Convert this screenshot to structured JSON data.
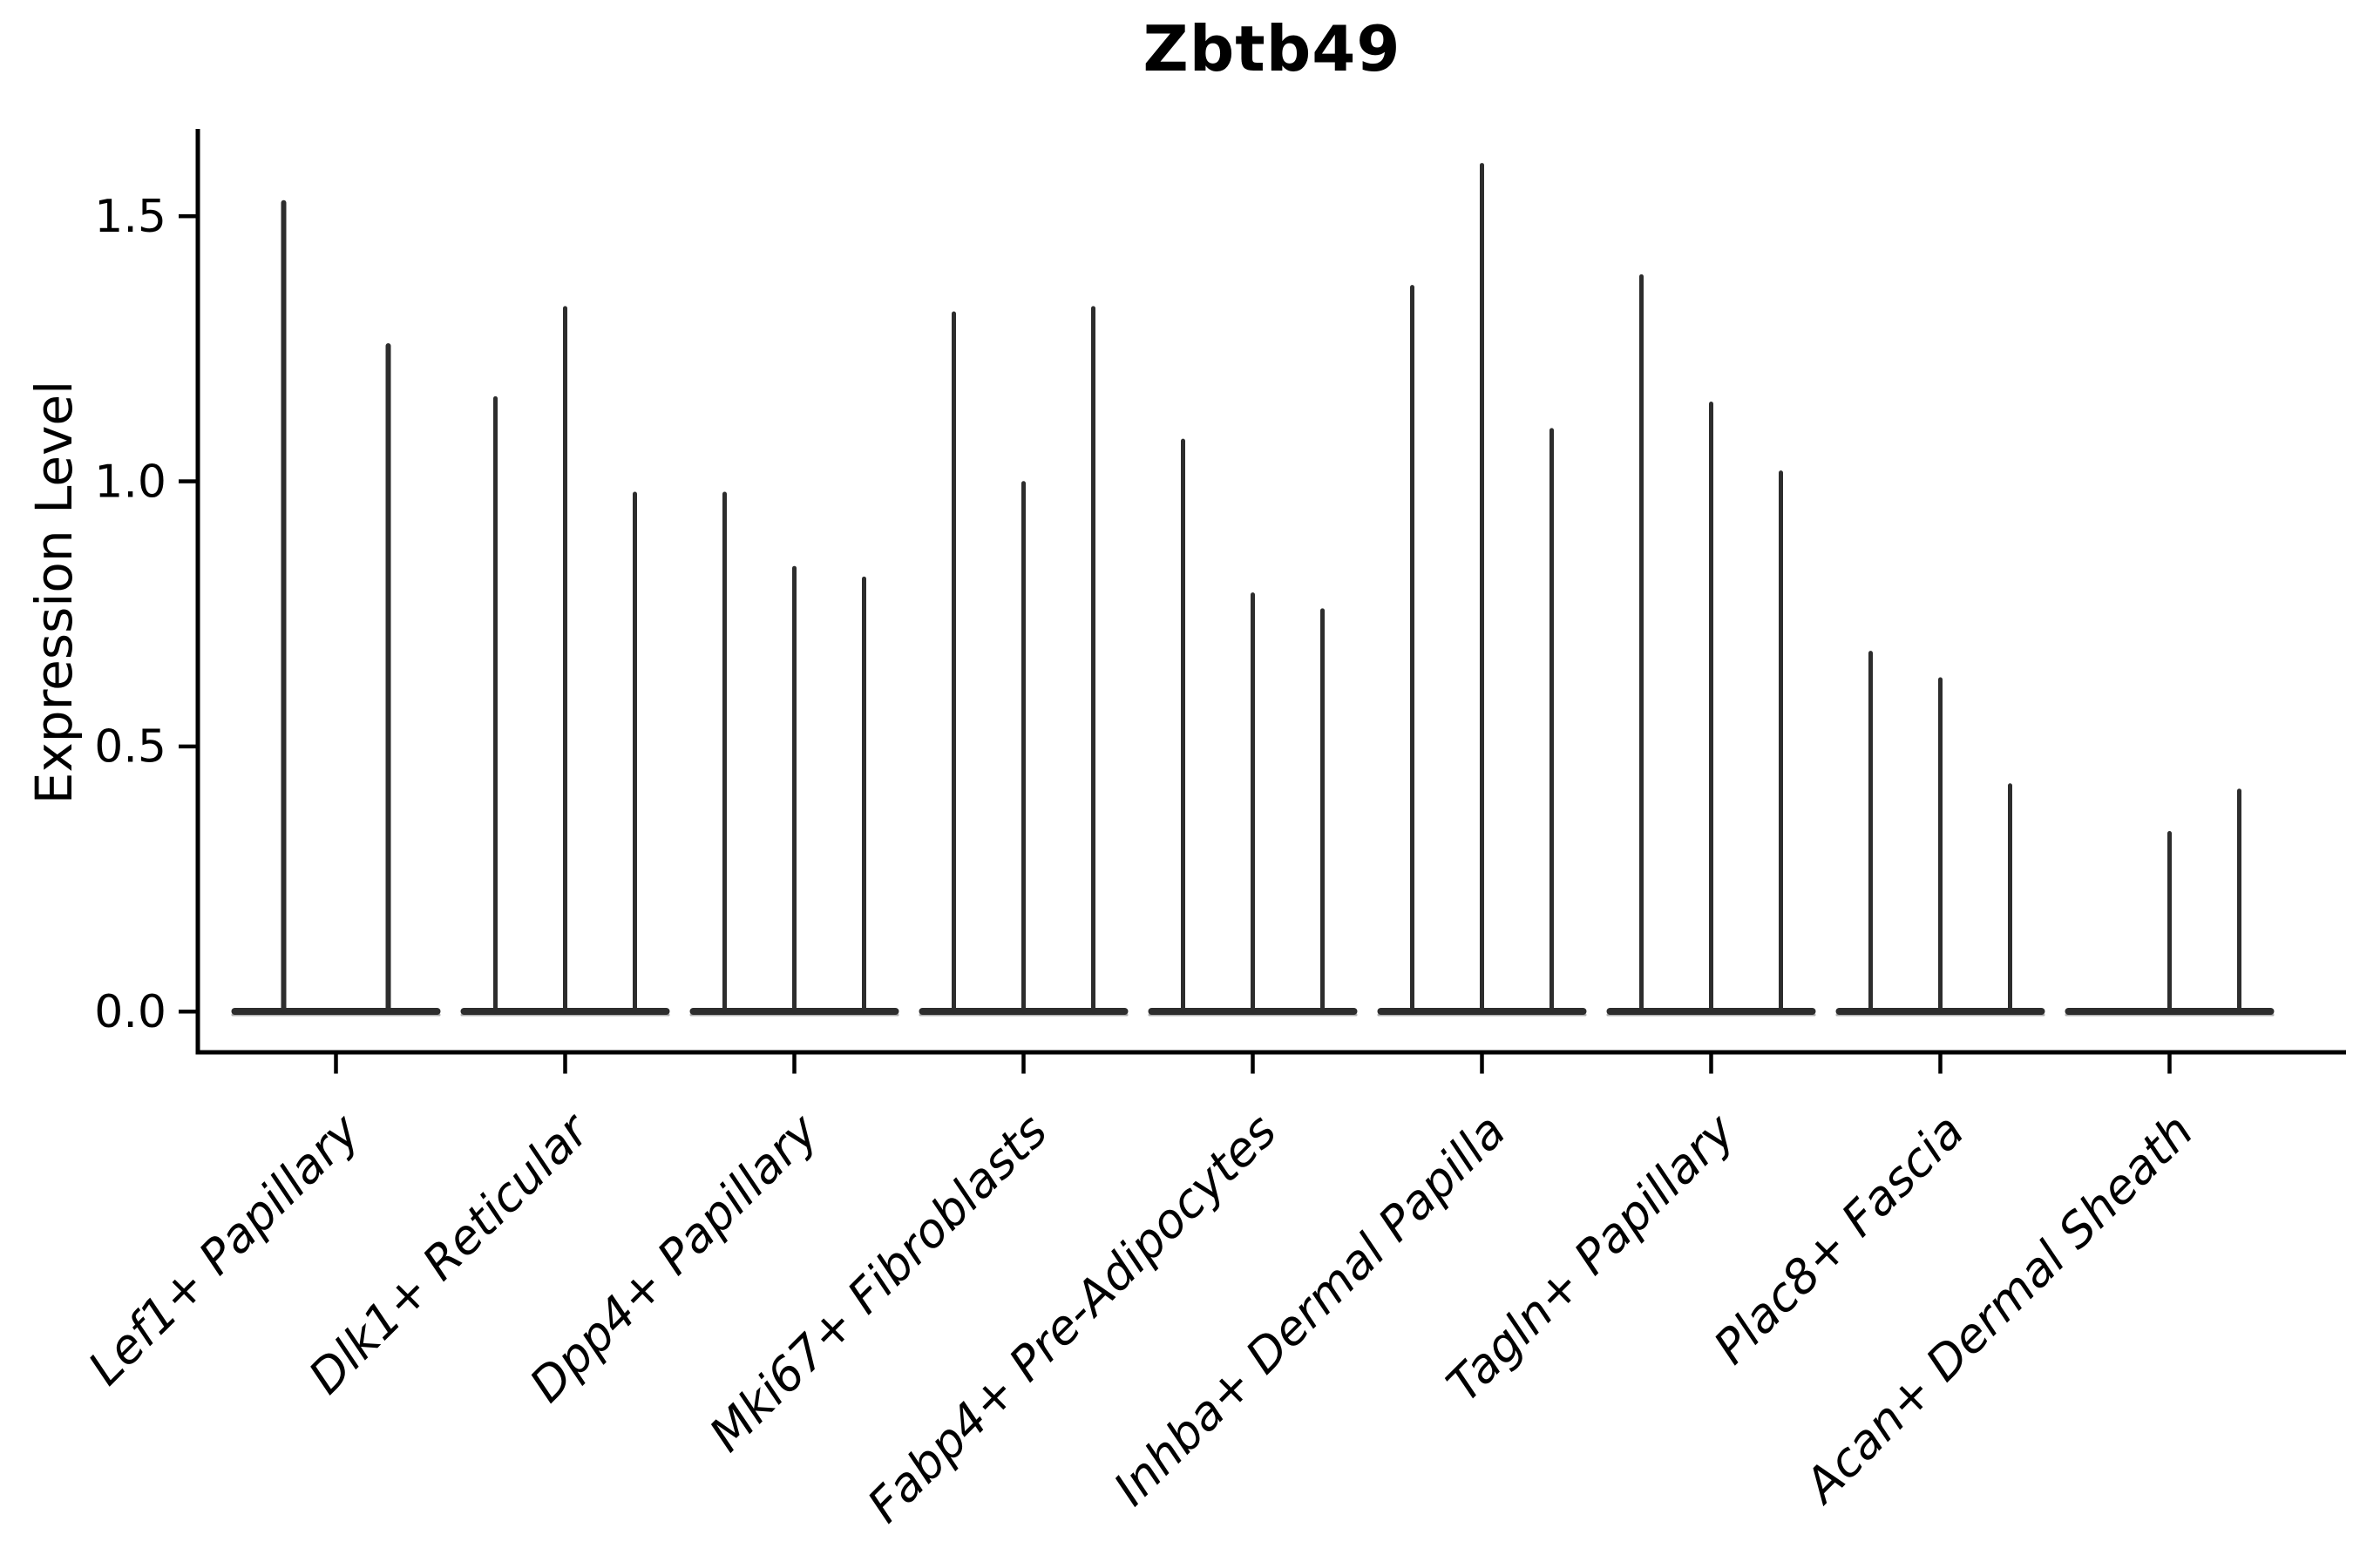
{
  "header": {
    "title": "Zbtb49"
  },
  "axes": {
    "ylabel": "Expression Level",
    "ytick_labels": [
      "0.0",
      "0.5",
      "1.0",
      "1.5"
    ]
  },
  "chart_data": {
    "type": "violin",
    "title": "Zbtb49",
    "xlabel": "",
    "ylabel": "Expression Level",
    "ylim": [
      -0.08,
      1.66
    ],
    "yticks": [
      0.0,
      0.5,
      1.0,
      1.5
    ],
    "grid": false,
    "legend": "none",
    "violin_style": "expression mass concentrated at 0 (wide flat base at y=0) with a narrow spike rising to the maximum expression value; all violins same dark color",
    "colors": {
      "violin_fill": "#2d2d2d",
      "base_fringe": "#b0b0b0",
      "axis": "#000000",
      "text": "#000000"
    },
    "categories": [
      "Lef1+ Papillary",
      "Dlk1+ Reticular",
      "Dpp4+ Papillary",
      "Mki67+ Fibroblasts",
      "Fabp4+ Pre-Adipocytes",
      "Inhba+ Dermal Papilla",
      "Tagln+ Papillary",
      "Plac8+ Fascia",
      "Acan+ Dermal Sheath"
    ],
    "groups": [
      {
        "category": "Lef1+ Papillary",
        "spike_maxima": [
          1.53,
          1.26
        ]
      },
      {
        "category": "Dlk1+ Reticular",
        "spike_maxima": [
          1.16,
          1.33,
          0.98
        ]
      },
      {
        "category": "Dpp4+ Papillary",
        "spike_maxima": [
          0.98,
          0.84,
          0.82
        ]
      },
      {
        "category": "Mki67+ Fibroblasts",
        "spike_maxima": [
          1.32,
          1.0,
          1.33
        ]
      },
      {
        "category": "Fabp4+ Pre-Adipocytes",
        "spike_maxima": [
          1.08,
          0.79,
          0.76
        ]
      },
      {
        "category": "Inhba+ Dermal Papilla",
        "spike_maxima": [
          1.37,
          1.6,
          1.1
        ]
      },
      {
        "category": "Tagln+ Papillary",
        "spike_maxima": [
          1.39,
          1.15,
          1.02
        ]
      },
      {
        "category": "Plac8+ Fascia",
        "spike_maxima": [
          0.68,
          0.63,
          0.43
        ]
      },
      {
        "category": "Acan+ Dermal Sheath",
        "spike_maxima": [
          0.0,
          0.34,
          0.42
        ]
      }
    ]
  }
}
